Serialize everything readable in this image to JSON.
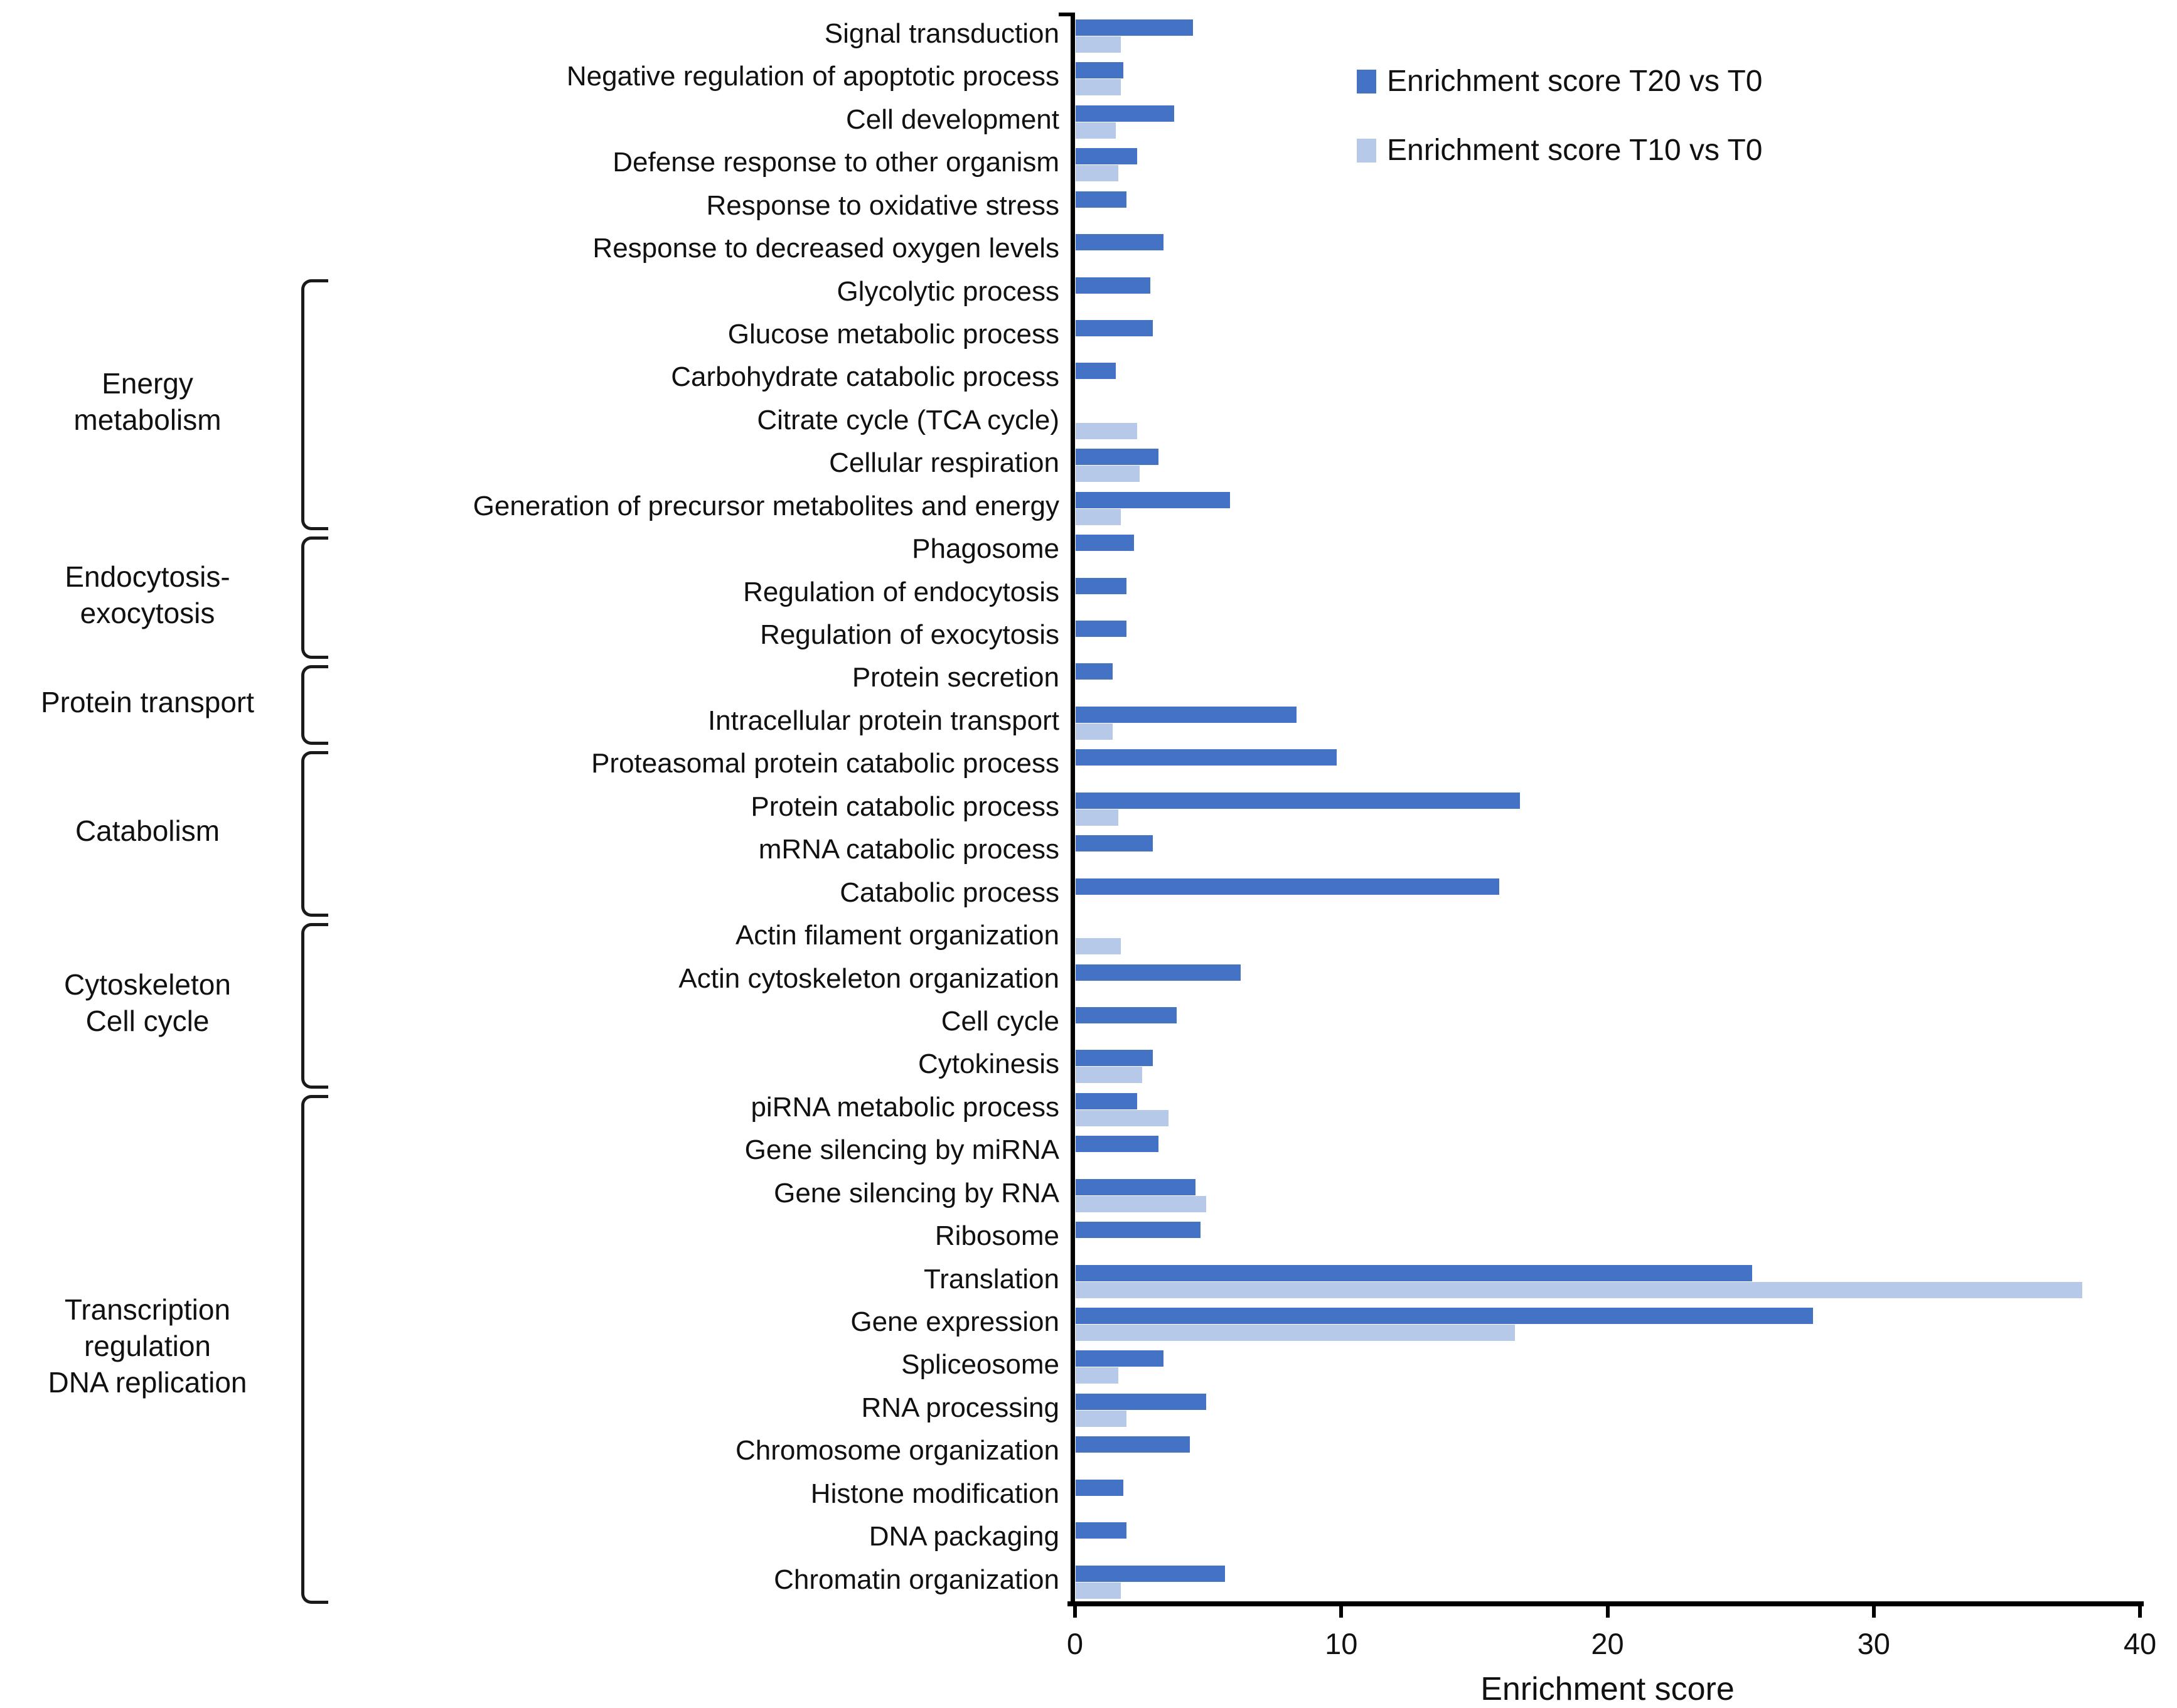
{
  "chart_data": {
    "type": "bar",
    "orientation": "horizontal",
    "xlabel": "Enrichment score",
    "xlim": [
      0,
      40
    ],
    "xticks": [
      0,
      10,
      20,
      30,
      40
    ],
    "grid": false,
    "legend_position": "top-right",
    "categories": [
      "Signal transduction",
      "Negative regulation of apoptotic process",
      "Cell development",
      "Defense response to other organism",
      "Response to oxidative stress",
      "Response to decreased oxygen levels",
      "Glycolytic process",
      "Glucose metabolic process",
      "Carbohydrate catabolic process",
      "Citrate cycle (TCA cycle)",
      "Cellular respiration",
      "Generation of precursor metabolites and energy",
      "Phagosome",
      "Regulation of endocytosis",
      "Regulation of exocytosis",
      "Protein secretion",
      "Intracellular protein transport",
      "Proteasomal protein catabolic process",
      "Protein catabolic process",
      "mRNA catabolic process",
      "Catabolic process",
      "Actin filament organization",
      "Actin cytoskeleton organization",
      "Cell cycle",
      "Cytokinesis",
      "piRNA metabolic process",
      "Gene silencing by miRNA",
      "Gene silencing by RNA",
      "Ribosome",
      "Translation",
      "Gene expression",
      "Spliceosome",
      "RNA processing",
      "Chromosome organization",
      "Histone modification",
      "DNA packaging",
      "Chromatin organization"
    ],
    "series": [
      {
        "name": "Enrichment score T20 vs T0",
        "color": "#4472C4",
        "values": [
          4.4,
          1.8,
          3.7,
          2.3,
          1.9,
          3.3,
          2.8,
          2.9,
          1.5,
          0,
          3.1,
          5.8,
          2.2,
          1.9,
          1.9,
          1.4,
          8.3,
          9.8,
          16.7,
          2.9,
          15.9,
          0,
          6.2,
          3.8,
          2.9,
          2.3,
          3.1,
          4.5,
          4.7,
          25.4,
          27.7,
          3.3,
          4.9,
          4.3,
          1.8,
          1.9,
          5.6
        ]
      },
      {
        "name": "Enrichment score T10 vs T0",
        "color": "#B7C9E8",
        "values": [
          1.7,
          1.7,
          1.5,
          1.6,
          0,
          0,
          0,
          0,
          0,
          2.3,
          2.4,
          1.7,
          0,
          0,
          0,
          0,
          1.4,
          0,
          1.6,
          0,
          0,
          1.7,
          0,
          0,
          2.5,
          3.5,
          0,
          4.9,
          0,
          37.8,
          16.5,
          1.6,
          1.9,
          0,
          0,
          0,
          1.7
        ]
      }
    ],
    "groups": [
      {
        "label": [
          "Energy",
          "metabolism"
        ],
        "start": 6,
        "end": 11
      },
      {
        "label": [
          "Endocytosis-",
          "exocytosis"
        ],
        "start": 12,
        "end": 14
      },
      {
        "label": [
          "Protein transport"
        ],
        "start": 15,
        "end": 16
      },
      {
        "label": [
          "Catabolism"
        ],
        "start": 17,
        "end": 20
      },
      {
        "label": [
          "Cytoskeleton",
          "Cell cycle"
        ],
        "start": 21,
        "end": 24
      },
      {
        "label": [
          "Transcription",
          "regulation",
          "DNA replication"
        ],
        "start": 25,
        "end": 36
      }
    ],
    "axis_color": "#000000",
    "text_color": "#111111"
  }
}
